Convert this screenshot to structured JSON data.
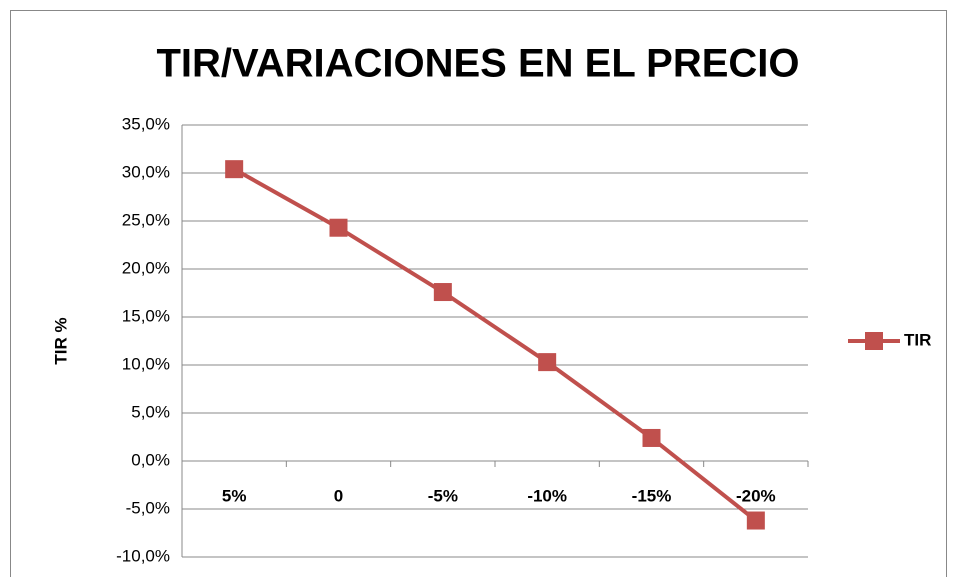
{
  "chart_data": {
    "type": "line",
    "title": "TIR/VARIACIONES EN EL PRECIO",
    "y_label": "TIR %",
    "categories": [
      "5%",
      "0",
      "-5%",
      "-10%",
      "-15%",
      "-20%"
    ],
    "series": [
      {
        "name": "TIR",
        "color": "#c0504d",
        "values": [
          30.4,
          24.3,
          17.6,
          10.3,
          2.4,
          -6.2
        ]
      }
    ],
    "ylim": [
      -10,
      35
    ],
    "yticks": [
      {
        "value": -10,
        "label": "-10,0%"
      },
      {
        "value": -5,
        "label": "-5,0%"
      },
      {
        "value": 0,
        "label": "0,0%"
      },
      {
        "value": 5,
        "label": "5,0%"
      },
      {
        "value": 10,
        "label": "10,0%"
      },
      {
        "value": 15,
        "label": "15,0%"
      },
      {
        "value": 20,
        "label": "20,0%"
      },
      {
        "value": 25,
        "label": "25,0%"
      },
      {
        "value": 30,
        "label": "30,0%"
      },
      {
        "value": 35,
        "label": "35,0%"
      }
    ],
    "grid": true,
    "legend": "right"
  }
}
